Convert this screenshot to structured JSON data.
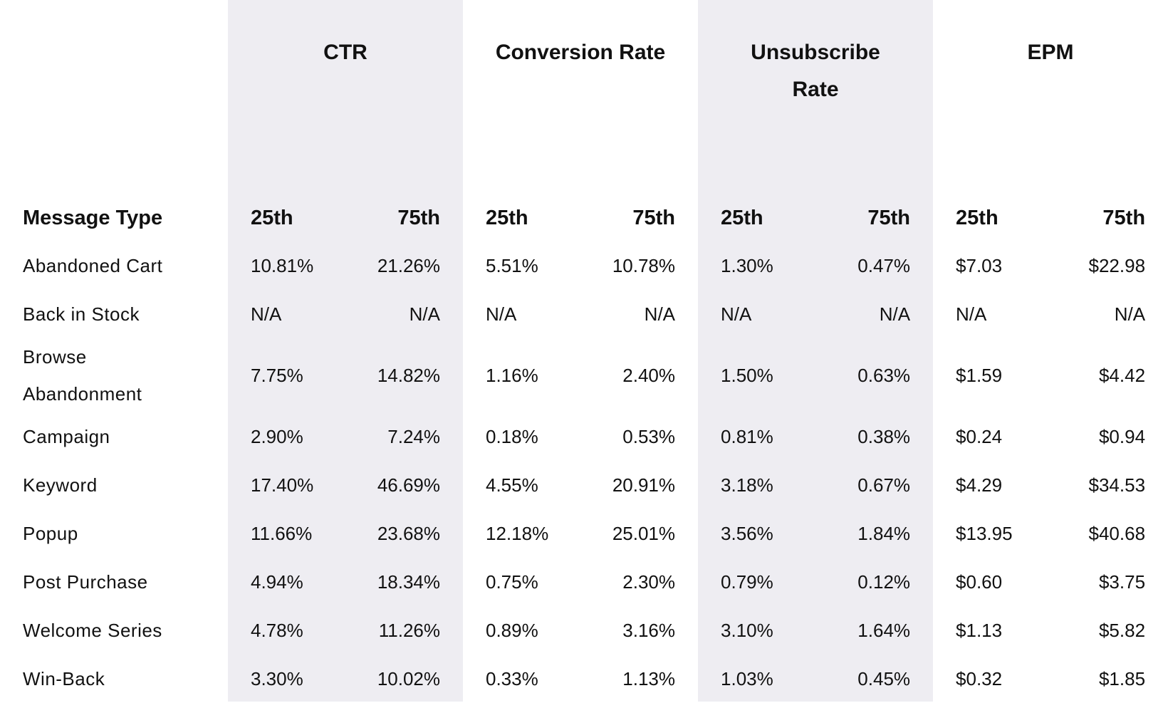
{
  "table": {
    "corner": "Message Type",
    "groups": [
      {
        "title": "CTR",
        "columns": [
          "25th",
          "75th"
        ]
      },
      {
        "title": "Conversion Rate",
        "columns": [
          "25th",
          "75th"
        ]
      },
      {
        "title": "Unsubscribe Rate",
        "columns": [
          "25th",
          "75th"
        ]
      },
      {
        "title": "EPM",
        "columns": [
          "25th",
          "75th"
        ]
      }
    ],
    "rows": [
      {
        "label": "Abandoned Cart",
        "cells": [
          "10.81%",
          "21.26%",
          "5.51%",
          "10.78%",
          "1.30%",
          "0.47%",
          "$7.03",
          "$22.98"
        ]
      },
      {
        "label": "Back in Stock",
        "cells": [
          "N/A",
          "N/A",
          "N/A",
          "N/A",
          "N/A",
          "N/A",
          "N/A",
          "N/A"
        ]
      },
      {
        "label": "Browse Abandonment",
        "cells": [
          "7.75%",
          "14.82%",
          "1.16%",
          "2.40%",
          "1.50%",
          "0.63%",
          "$1.59",
          "$4.42"
        ]
      },
      {
        "label": "Campaign",
        "cells": [
          "2.90%",
          "7.24%",
          "0.18%",
          "0.53%",
          "0.81%",
          "0.38%",
          "$0.24",
          "$0.94"
        ]
      },
      {
        "label": "Keyword",
        "cells": [
          "17.40%",
          "46.69%",
          "4.55%",
          "20.91%",
          "3.18%",
          "0.67%",
          "$4.29",
          "$34.53"
        ]
      },
      {
        "label": "Popup",
        "cells": [
          "11.66%",
          "23.68%",
          "12.18%",
          "25.01%",
          "3.56%",
          "1.84%",
          "$13.95",
          "$40.68"
        ]
      },
      {
        "label": "Post Purchase",
        "cells": [
          "4.94%",
          "18.34%",
          "0.75%",
          "2.30%",
          "0.79%",
          "0.12%",
          "$0.60",
          "$3.75"
        ]
      },
      {
        "label": "Welcome Series",
        "cells": [
          "4.78%",
          "11.26%",
          "0.89%",
          "3.16%",
          "3.10%",
          "1.64%",
          "$1.13",
          "$5.82"
        ]
      },
      {
        "label": "Win-Back",
        "cells": [
          "3.30%",
          "10.02%",
          "0.33%",
          "1.13%",
          "1.03%",
          "0.45%",
          "$0.32",
          "$1.85"
        ]
      }
    ]
  }
}
